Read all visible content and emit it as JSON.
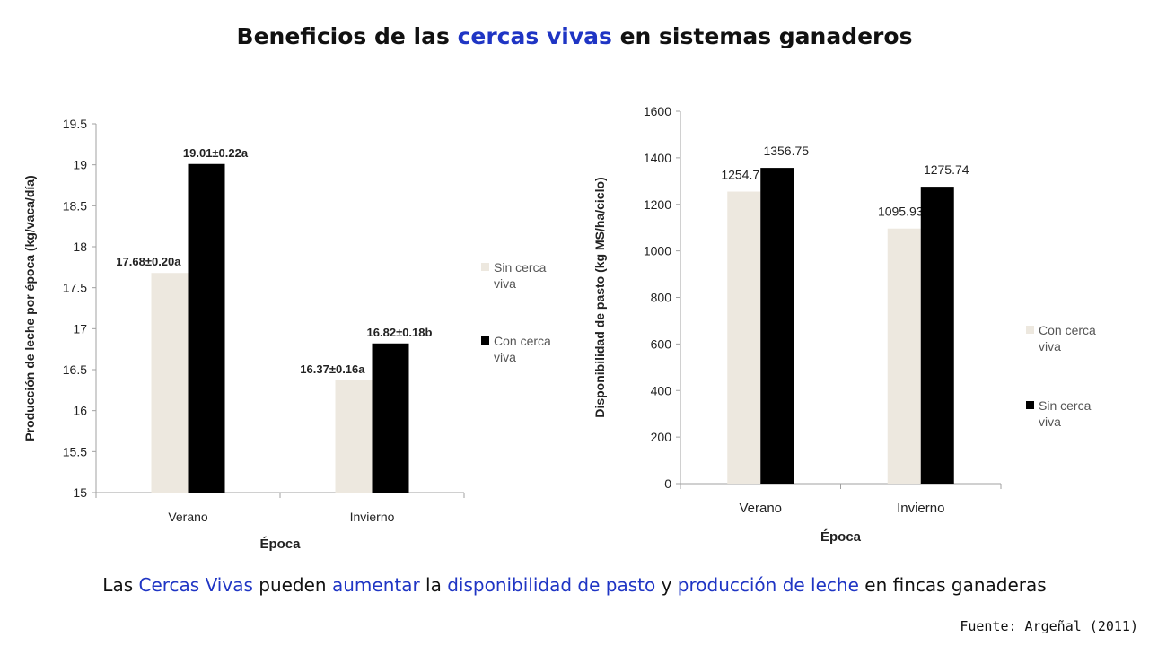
{
  "title": {
    "part1": "Beneficios de las ",
    "highlight": "cercas vivas",
    "part2": " en sistemas ganaderos"
  },
  "caption": {
    "t1": "Las ",
    "h1": "Cercas Vivas",
    "t2": " pueden ",
    "h2": "aumentar",
    "t3": " la ",
    "h3": "disponibilidad de pasto",
    "t4": " y ",
    "h4": "producción de leche",
    "t5": " en fincas ganaderas"
  },
  "source": "Fuente: Argeñal (2011)",
  "colors": {
    "highlight": "#1f35c4",
    "light_bar": "#ede8df",
    "dark_bar": "#000000",
    "axis": "#a0a0a0"
  },
  "chart_data": [
    {
      "type": "bar",
      "categories": [
        "Verano",
        "Invierno"
      ],
      "xlabel": "Época",
      "ylabel": "Producción de leche por época (kg/vaca/día)",
      "ylim": [
        15,
        19.5
      ],
      "yticks": [
        "15",
        "15.5",
        "16",
        "16.5",
        "17",
        "17.5",
        "18",
        "18.5",
        "19",
        "19.5"
      ],
      "legend_position": "right",
      "series": [
        {
          "name": "Sin cerca viva",
          "color": "#ede8df",
          "values": [
            17.68,
            16.37
          ],
          "labels": [
            "17.68±0.20a",
            "16.37±0.16a"
          ]
        },
        {
          "name": "Con cerca viva",
          "color": "#000000",
          "values": [
            19.01,
            16.82
          ],
          "labels": [
            "19.01±0.22a",
            "16.82±0.18b"
          ]
        }
      ]
    },
    {
      "type": "bar",
      "categories": [
        "Verano",
        "Invierno"
      ],
      "xlabel": "Época",
      "ylabel": "Disponibilidad de pasto (kg MS/ha/ciclo)",
      "ylim": [
        0,
        1600
      ],
      "yticks": [
        "0",
        "200",
        "400",
        "600",
        "800",
        "1000",
        "1200",
        "1400",
        "1600"
      ],
      "legend_position": "right",
      "series": [
        {
          "name": "Con cerca viva",
          "color": "#ede8df",
          "values": [
            1254.7,
            1095.93
          ],
          "labels": [
            "1254.7",
            "1095.93"
          ]
        },
        {
          "name": "Sin cerca viva",
          "color": "#000000",
          "values": [
            1356.75,
            1275.74
          ],
          "labels": [
            "1356.75",
            "1275.74"
          ]
        }
      ]
    }
  ]
}
